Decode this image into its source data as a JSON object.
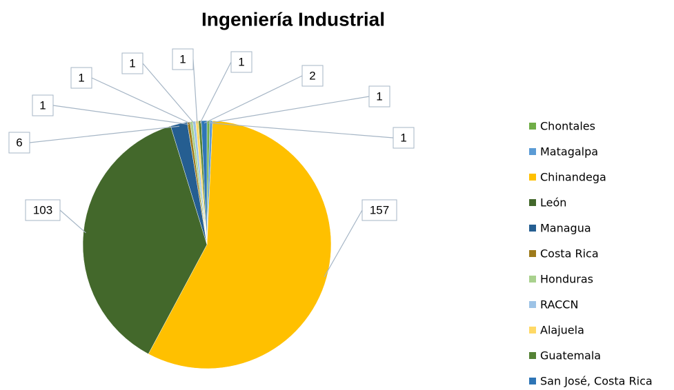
{
  "chart_data": {
    "type": "pie",
    "title": "Ingeniería Industrial",
    "categories": [
      "Chontales",
      "Matagalpa",
      "Chinandega",
      "León",
      "Managua",
      "Costa Rica",
      "Honduras",
      "RACCN",
      "Alajuela",
      "Guatemala",
      "San José, Costa Rica"
    ],
    "values": [
      1,
      1,
      157,
      103,
      6,
      1,
      1,
      1,
      1,
      1,
      2
    ],
    "colors": [
      "#70ad47",
      "#5b9bd5",
      "#ffc000",
      "#43682b",
      "#255e91",
      "#9e7b1b",
      "#a9d18e",
      "#9dc3e6",
      "#ffd966",
      "#548235",
      "#2e75b6"
    ],
    "legend": "right"
  }
}
